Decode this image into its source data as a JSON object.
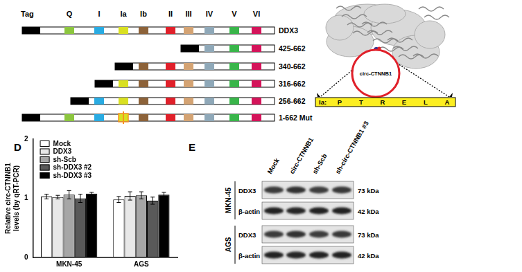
{
  "panel_labels": [
    "D",
    "E"
  ],
  "diagram": {
    "tag_label": "Tag",
    "domains": [
      {
        "name": "Q",
        "color": "#8cc63f"
      },
      {
        "name": "I",
        "color": "#29abe2"
      },
      {
        "name": "Ia",
        "color": "#d9e021"
      },
      {
        "name": "Ib",
        "color": "#8c6239"
      },
      {
        "name": "II",
        "color": "#e0202a"
      },
      {
        "name": "III",
        "color": "#d4a373"
      },
      {
        "name": "IV",
        "color": "#8fa8b8"
      },
      {
        "name": "V",
        "color": "#39b54a"
      },
      {
        "name": "VI",
        "color": "#d4145a"
      }
    ],
    "constructs": [
      {
        "label": "DDX3",
        "first_domain": "Q"
      },
      {
        "label": "425-662",
        "first_domain": "IV"
      },
      {
        "label": "340-662",
        "first_domain": "Ib"
      },
      {
        "label": "316-662",
        "first_domain": "Ia"
      },
      {
        "label": "256-662",
        "first_domain": "I"
      },
      {
        "label": "1-662 Mut",
        "first_domain": "Q",
        "mutated_domain": "Ia"
      }
    ],
    "structure": {
      "circle_label": "circ-CTNNB1",
      "motif_label": "Ia:",
      "motif_residues": [
        "P",
        "T",
        "R",
        "E",
        "L",
        "A"
      ]
    }
  },
  "chart_data": {
    "type": "bar",
    "categories": [
      "MKN-45",
      "AGS"
    ],
    "ylabel": [
      "Relative circ-CTNNB1",
      "levels (by qRT-PCR)"
    ],
    "series": [
      {
        "name": "Mock",
        "color": "#ffffff",
        "values": [
          1.03,
          0.98
        ],
        "errors": [
          0.04,
          0.05
        ]
      },
      {
        "name": "DDX3",
        "color": "#e8e8e8",
        "values": [
          1.02,
          1.04
        ],
        "errors": [
          0.03,
          0.07
        ]
      },
      {
        "name": "sh-Scb",
        "color": "#a6a6a6",
        "values": [
          1.06,
          1.05
        ],
        "errors": [
          0.07,
          0.06
        ]
      },
      {
        "name": "sh-DDX3 #2",
        "color": "#595959",
        "values": [
          1.0,
          0.96
        ],
        "errors": [
          0.07,
          0.06
        ]
      },
      {
        "name": "sh-DDX3 #3",
        "color": "#000000",
        "values": [
          1.08,
          1.06
        ],
        "errors": [
          0.02,
          0.04
        ]
      }
    ],
    "ylim": [
      0,
      2
    ],
    "yticks": [
      0,
      1,
      2
    ],
    "grid": false,
    "legend": "top-left"
  },
  "blot": {
    "lanes": [
      "Mock",
      "circ-CTNNB1",
      "sh-Scb",
      "sh-circ-CTNNB1 #3"
    ],
    "cell_lines": [
      {
        "name": "MKN-45",
        "rows": [
          {
            "protein": "DDX3",
            "size": "73 kDa"
          },
          {
            "protein": "β-actin",
            "size": "42 kDa"
          }
        ]
      },
      {
        "name": "AGS",
        "rows": [
          {
            "protein": "DDX3",
            "size": "73 kDa"
          },
          {
            "protein": "β-actin",
            "size": "42 kDa"
          }
        ]
      }
    ]
  }
}
